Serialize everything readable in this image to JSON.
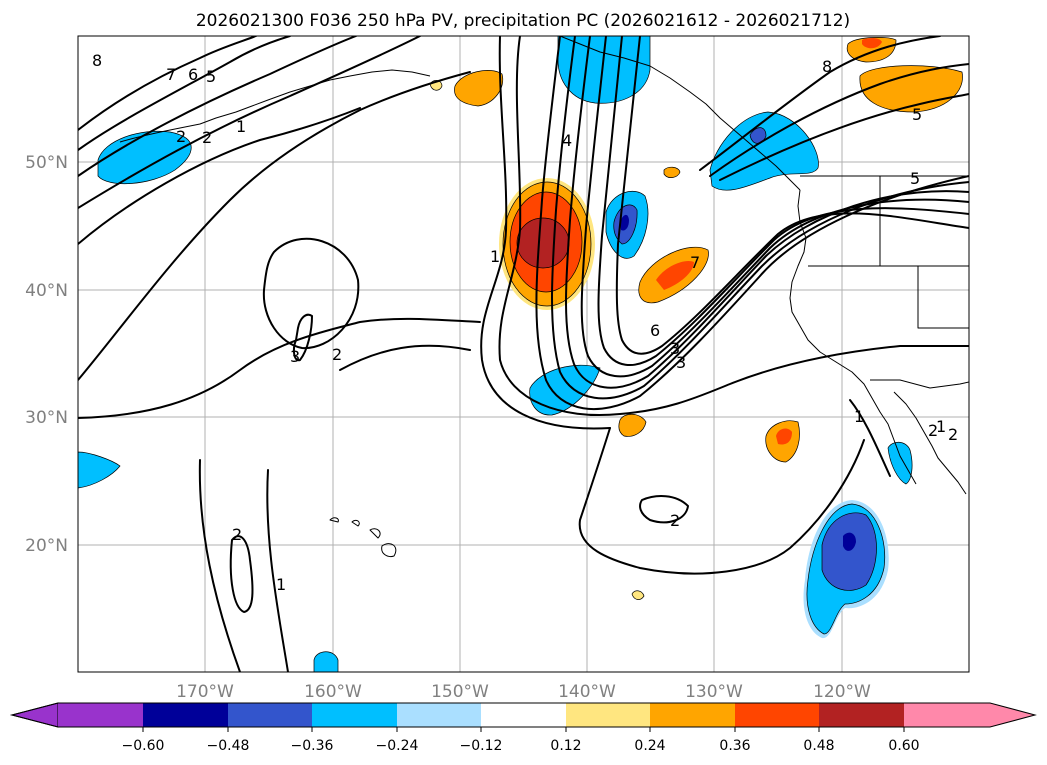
{
  "title": "2026021300 F036 250 hPa PV, precipitation PC (2026021612 - 2026021712)",
  "lat_labels": [
    "50°N",
    "40°N",
    "30°N",
    "20°N"
  ],
  "lon_labels": [
    "170°W",
    "160°W",
    "150°W",
    "140°W",
    "130°W",
    "120°W"
  ],
  "colorbar": {
    "ticks": [
      "−0.60",
      "−0.48",
      "−0.36",
      "−0.24",
      "−0.12",
      "0.12",
      "0.24",
      "0.36",
      "0.48",
      "0.60"
    ],
    "colors": [
      "#9933cc",
      "#000099",
      "#3355cc",
      "#00bfff",
      "#aadfff",
      "#ffffff",
      "#ffe680",
      "#ffa500",
      "#ff4500",
      "#b22222",
      "#ff88aa"
    ]
  },
  "contour_labels": [
    "8",
    "7",
    "6",
    "5",
    "2",
    "1",
    "2",
    "4",
    "3",
    "1",
    "2",
    "3",
    "2",
    "1",
    "2",
    "6",
    "3",
    "7",
    "8",
    "5",
    "5",
    "1",
    "2",
    "2",
    "1"
  ],
  "map_extent": {
    "lon": [
      -180,
      -110
    ],
    "lat": [
      10,
      60
    ]
  }
}
